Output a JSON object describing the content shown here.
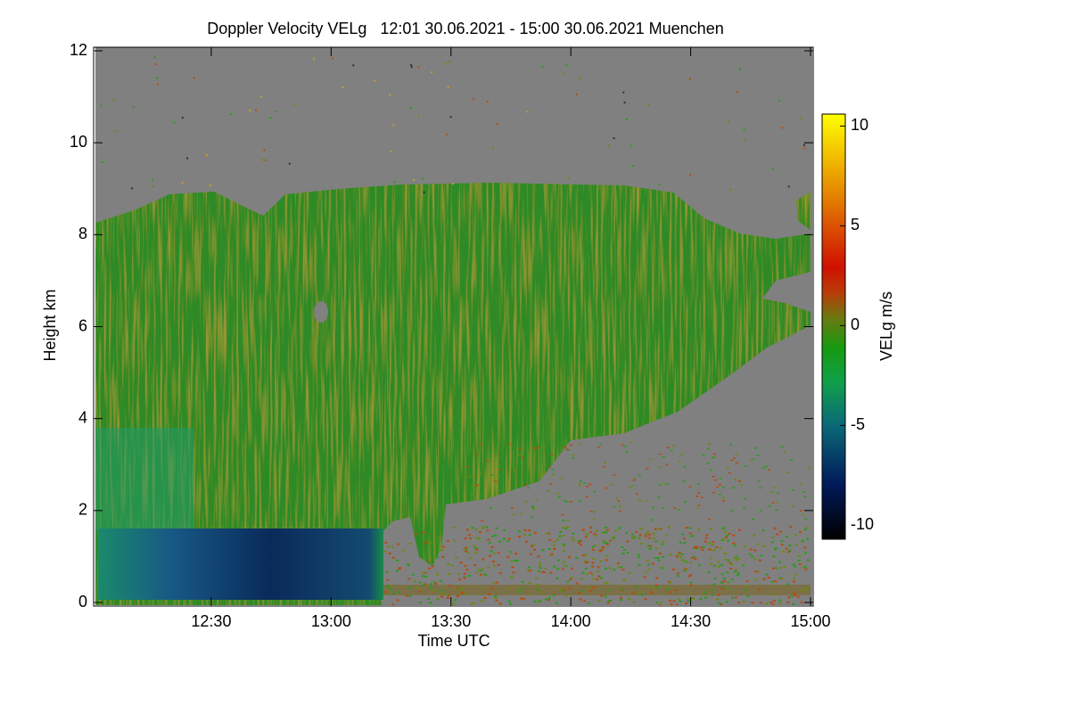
{
  "chart_data": {
    "type": "heatmap",
    "title": "Doppler Velocity VELg   12:01 30.06.2021 - 15:00 30.06.2021 Muenchen",
    "x_label": "Time UTC",
    "y_label": "Height km",
    "colorbar_label": "VELg m/s",
    "xlim": [
      721,
      900
    ],
    "xticks": [
      {
        "value": 750,
        "label": "12:30"
      },
      {
        "value": 780,
        "label": "13:00"
      },
      {
        "value": 810,
        "label": "13:30"
      },
      {
        "value": 840,
        "label": "14:00"
      },
      {
        "value": 870,
        "label": "14:30"
      },
      {
        "value": 900,
        "label": "15:00"
      }
    ],
    "ylim": [
      0,
      12
    ],
    "yticks": [
      0,
      2,
      4,
      6,
      8,
      10,
      12
    ],
    "clim": [
      -10.7,
      10.6
    ],
    "cticks": [
      -10,
      -5,
      0,
      5,
      10
    ],
    "background_color": "#808080"
  }
}
